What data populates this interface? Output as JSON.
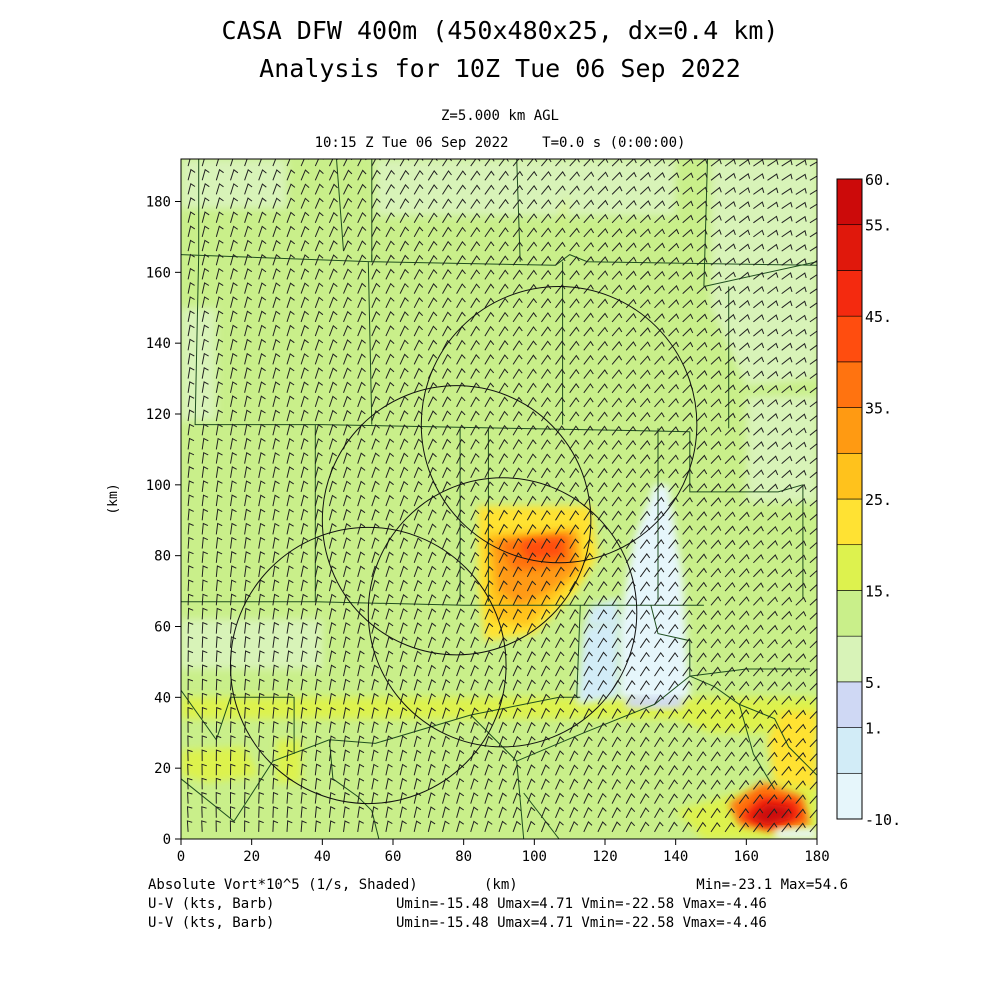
{
  "title": "CASA DFW 400m (450x480x25, dx=0.4 km)",
  "subtitle": "Analysis for 10Z Tue 06 Sep 2022",
  "level_text": "Z=5.000 km AGL",
  "time_text": "10:15 Z Tue 06 Sep 2022    T=0.0 s (0:00:00)",
  "footer": {
    "field_label": "Absolute Vort*10^5 (1/s, Shaded)",
    "xunit": "(km)",
    "minmax": "Min=-23.1 Max=54.6",
    "barb_label_1": "U-V (kts, Barb)",
    "barb_label_2": "U-V (kts, Barb)",
    "barb_stats_1": "Umin=-15.48 Umax=4.71 Vmin=-22.58 Vmax=-4.46",
    "barb_stats_2": "Umin=-15.48 Umax=4.71 Vmin=-22.58 Vmax=-4.46"
  },
  "colors": {
    "c_neg10": "#e6f6fb",
    "c_m1": "#d2ecf7",
    "c_1": "#cfd8f4",
    "c_5": "#d8f3b8",
    "c_10": "#c9ef8a",
    "c_15": "#ddf24e",
    "c_20": "#ffe233",
    "c_25": "#ffc21c",
    "c_30": "#ff9a12",
    "c_35": "#ff7310",
    "c_40": "#ff4d0f",
    "c_45": "#f42a0f",
    "c_50": "#e0180c",
    "c_55": "#cc0a0a",
    "c_60": "#b80000",
    "boundary": "#1f4f1f",
    "barb": "#222222"
  },
  "chart_data": {
    "type": "heatmap",
    "field": "Absolute Vort*10^5 (1/s, Shaded)",
    "xlabel": "",
    "ylabel": "(km)",
    "xunit": "(km)",
    "xlim": [
      0,
      180
    ],
    "ylim": [
      0,
      192
    ],
    "xticks": [
      0,
      20,
      40,
      60,
      80,
      100,
      120,
      140,
      160,
      180
    ],
    "yticks": [
      0,
      20,
      40,
      60,
      80,
      100,
      120,
      140,
      160,
      180
    ],
    "min": -23.1,
    "max": 54.6,
    "colorbar": {
      "levels": [
        -10,
        -5,
        1,
        5,
        10,
        15,
        20,
        25,
        30,
        35,
        40,
        45,
        50,
        55,
        60
      ],
      "labels": [
        "-10.",
        "1.",
        "5.",
        "15.",
        "25.",
        "35.",
        "45.",
        "55.",
        "60."
      ]
    },
    "features": [
      {
        "kind": "max",
        "x_km": 168,
        "y_km": 6,
        "value": 54.6
      },
      {
        "kind": "high",
        "x_km": 104,
        "y_km": 82,
        "value": 35
      },
      {
        "kind": "low",
        "x_km": 132,
        "y_km": 65,
        "value": -10
      },
      {
        "kind": "low",
        "x_km": 172,
        "y_km": 3,
        "value": -23.1
      }
    ],
    "radar_rings": [
      {
        "cx_km": 78,
        "cy_km": 90,
        "r_km": 38
      },
      {
        "cx_km": 107,
        "cy_km": 117,
        "r_km": 39
      },
      {
        "cx_km": 53,
        "cy_km": 49,
        "r_km": 39
      },
      {
        "cx_km": 91,
        "cy_km": 64,
        "r_km": 38
      }
    ],
    "barbs": {
      "umin": -15.48,
      "umax": 4.71,
      "vmin": -22.58,
      "vmax": -4.46,
      "units": "kts"
    }
  }
}
